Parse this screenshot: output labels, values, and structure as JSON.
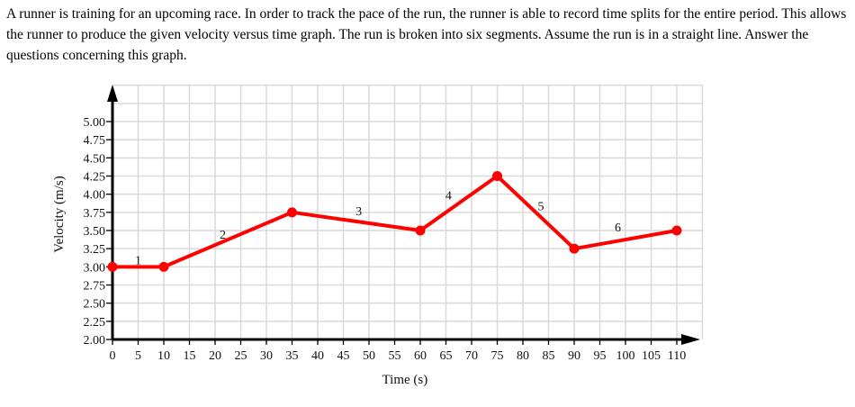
{
  "question": {
    "text": "A runner is training for an upcoming race. In order to track the pace of the run, the runner is able to record time splits for the entire period. This allows the runner to produce the given velocity versus time graph. The run is broken into six segments. Assume the run is in a straight line. Answer the questions concerning this graph."
  },
  "chart_data": {
    "type": "line",
    "title": "",
    "xlabel": "Time (s)",
    "ylabel": "Velocity (m/s)",
    "xlim": [
      0,
      115
    ],
    "ylim": [
      2.0,
      5.5
    ],
    "grid": true,
    "x_ticks": [
      0,
      5,
      10,
      15,
      20,
      25,
      30,
      35,
      40,
      45,
      50,
      55,
      60,
      65,
      70,
      75,
      80,
      85,
      90,
      95,
      100,
      105,
      110
    ],
    "y_ticks": [
      2.0,
      2.25,
      2.5,
      2.75,
      3.0,
      3.25,
      3.5,
      3.75,
      4.0,
      4.25,
      4.5,
      4.75,
      5.0
    ],
    "y_tick_labels": [
      "2.00",
      "2.25",
      "2.50",
      "2.75",
      "3.00",
      "3.25",
      "3.50",
      "3.75",
      "4.00",
      "4.25",
      "4.50",
      "4.75",
      "5.00"
    ],
    "series": [
      {
        "name": "velocity",
        "color": "#ff0000",
        "x": [
          0,
          10,
          35,
          60,
          75,
          90,
          110
        ],
        "y": [
          3.0,
          3.0,
          3.75,
          3.5,
          4.25,
          3.25,
          3.5
        ]
      }
    ],
    "annotations": [
      {
        "text": "1",
        "x": 5,
        "y": 3.1
      },
      {
        "text": "2",
        "x": 21.5,
        "y": 3.45
      },
      {
        "text": "3",
        "x": 48,
        "y": 3.77
      },
      {
        "text": "4",
        "x": 65.5,
        "y": 3.99
      },
      {
        "text": "5",
        "x": 83.5,
        "y": 3.84
      },
      {
        "text": "6",
        "x": 98.5,
        "y": 3.55
      }
    ]
  }
}
